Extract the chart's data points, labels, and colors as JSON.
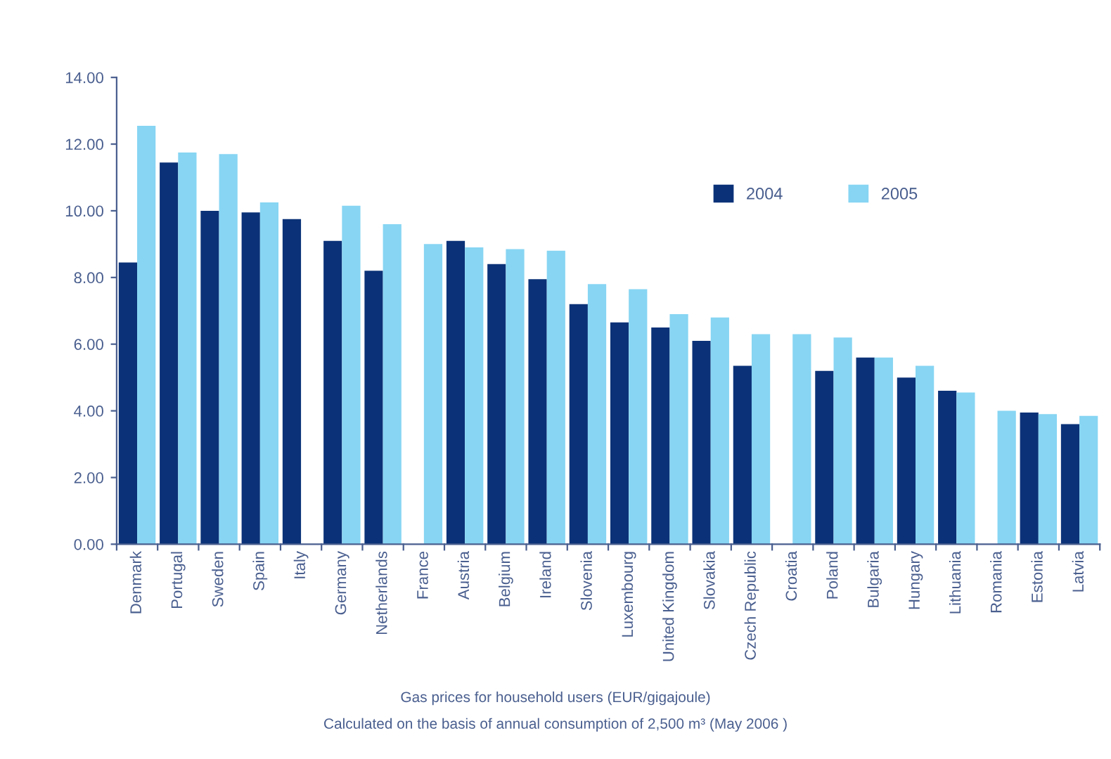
{
  "chart_data": {
    "type": "bar",
    "categories": [
      "Denmark",
      "Portugal",
      "Sweden",
      "Spain",
      "Italy",
      "Germany",
      "Netherlands",
      "France",
      "Austria",
      "Belgium",
      "Ireland",
      "Slovenia",
      "Luxembourg",
      "United Kingdom",
      "Slovakia",
      "Czech Republic",
      "Croatia",
      "Poland",
      "Bulgaria",
      "Hungary",
      "Lithuania",
      "Romania",
      "Estonia",
      "Latvia"
    ],
    "series": [
      {
        "name": "2004",
        "color": "#0b3278",
        "values": [
          8.45,
          11.45,
          10.0,
          9.95,
          9.75,
          9.1,
          8.2,
          null,
          9.1,
          8.4,
          7.95,
          7.2,
          6.65,
          6.5,
          6.1,
          5.35,
          null,
          5.2,
          5.6,
          5.0,
          4.6,
          null,
          3.95,
          3.6
        ]
      },
      {
        "name": "2005",
        "color": "#87d5f3",
        "values": [
          12.55,
          11.75,
          11.7,
          10.25,
          null,
          10.15,
          9.6,
          9.0,
          8.9,
          8.85,
          8.8,
          7.8,
          7.65,
          6.9,
          6.8,
          6.3,
          6.3,
          6.2,
          5.6,
          5.35,
          4.55,
          4.0,
          3.9,
          3.85
        ]
      }
    ],
    "ylim": [
      0,
      14
    ],
    "yticks": [
      {
        "value": 0,
        "label": "0.00"
      },
      {
        "value": 2,
        "label": "2.00"
      },
      {
        "value": 4,
        "label": "4.00"
      },
      {
        "value": 6,
        "label": "6.00"
      },
      {
        "value": 8,
        "label": "8.00"
      },
      {
        "value": 10,
        "label": "10.00"
      },
      {
        "value": 12,
        "label": "12.00"
      },
      {
        "value": 14,
        "label": "14.00"
      }
    ],
    "grid": false,
    "legend": "top right",
    "annotations": [
      "Gas prices for household users (EUR/gigajoule)",
      "Calculated on the basis of annual consumption of 2,500 m³ (May 2006 )"
    ]
  }
}
